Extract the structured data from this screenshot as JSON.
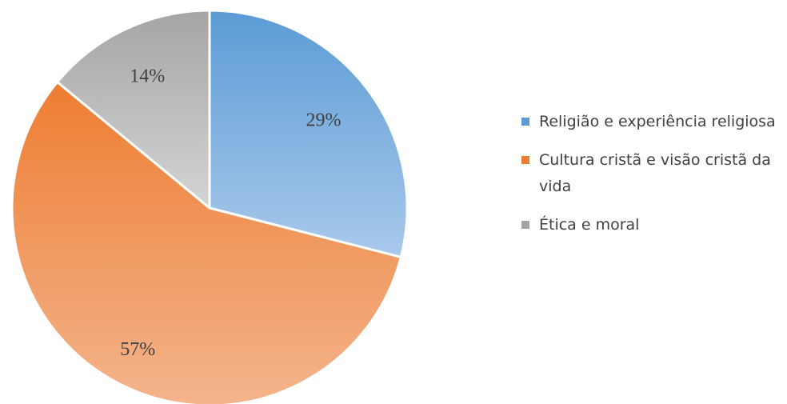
{
  "chart_data": {
    "type": "pie",
    "title": "",
    "categories": [
      "Religião e experiência religiosa",
      "Cultura cristã e visão cristã da vida",
      "Ética e moral"
    ],
    "values": [
      29,
      57,
      14
    ],
    "value_labels": [
      "29%",
      "57%",
      "14%"
    ],
    "colors": [
      "#5b9bd5",
      "#ed7d31",
      "#a5a5a5"
    ],
    "legend_position": "right",
    "start_angle": "12 o'clock",
    "direction": "clockwise"
  }
}
